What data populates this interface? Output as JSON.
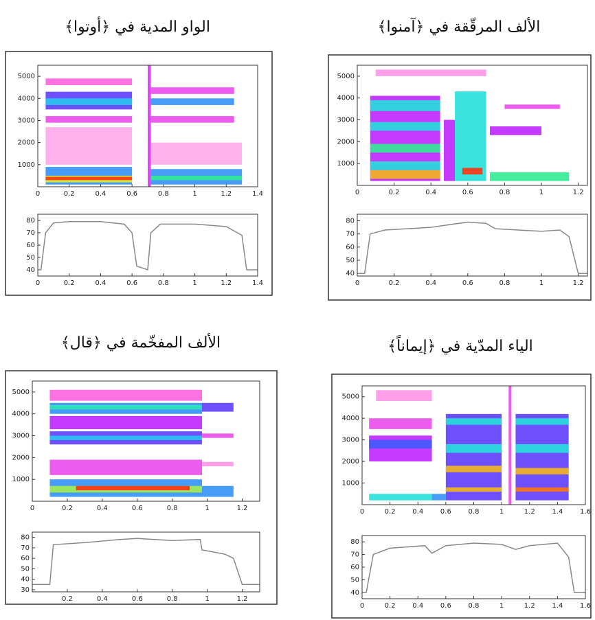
{
  "chart_data": [
    {
      "type": "spectrogram",
      "title": "الواو المدية في ﴿أوتوا﴾",
      "xlim": [
        0,
        1.4
      ],
      "xticks": [
        0,
        0.2,
        0.4,
        0.6,
        0.8,
        1,
        1.2,
        1.4
      ],
      "ylim": [
        0,
        5500
      ],
      "yticks": [
        1000,
        2000,
        3000,
        4000,
        5000
      ],
      "colormap": [
        "#ffffff",
        "#ff66dd",
        "#cc22ff",
        "#4444ff",
        "#22ddee",
        "#33ee88",
        "#eeee22",
        "#ff3311"
      ],
      "bands": [
        [
          0.05,
          0.6,
          100,
          900,
          0.5
        ],
        [
          0.05,
          0.6,
          200,
          500,
          0.85
        ],
        [
          0.05,
          0.6,
          300,
          450,
          1
        ],
        [
          0.05,
          0.6,
          1000,
          2700,
          0.08
        ],
        [
          0.05,
          0.6,
          2900,
          3200,
          0.2
        ],
        [
          0.05,
          0.6,
          3500,
          4300,
          0.4
        ],
        [
          0.05,
          0.6,
          3700,
          4000,
          0.55
        ],
        [
          0.05,
          0.6,
          4600,
          4900,
          0.15
        ],
        [
          0.7,
          0.72,
          0,
          5500,
          0.25
        ],
        [
          0.72,
          1.3,
          100,
          800,
          0.5
        ],
        [
          0.72,
          1.3,
          300,
          500,
          0.7
        ],
        [
          0.72,
          1.25,
          3700,
          4000,
          0.5
        ],
        [
          0.72,
          1.25,
          2900,
          3200,
          0.2
        ],
        [
          0.72,
          1.25,
          4200,
          4500,
          0.2
        ],
        [
          0.72,
          1.3,
          1000,
          2000,
          0.08
        ]
      ]
    },
    {
      "type": "line",
      "xlim": [
        0,
        1.4
      ],
      "xticks": [
        0,
        0.2,
        0.4,
        0.6,
        0.8,
        1,
        1.2,
        1.4
      ],
      "ylim": [
        35,
        85
      ],
      "yticks": [
        40,
        50,
        60,
        70,
        80
      ],
      "color": "#888888",
      "x": [
        0,
        0.02,
        0.05,
        0.1,
        0.2,
        0.4,
        0.55,
        0.6,
        0.63,
        0.7,
        0.72,
        0.78,
        1.0,
        1.2,
        1.3,
        1.33,
        1.4
      ],
      "values": [
        40,
        40,
        70,
        78,
        79,
        79,
        77,
        70,
        43,
        40,
        70,
        77,
        77,
        75,
        68,
        40,
        40
      ]
    },
    {
      "type": "spectrogram",
      "title": "الألف المرقّقة في ﴿آمنوا﴾",
      "xlim": [
        0,
        1.25
      ],
      "xticks": [
        0,
        0.2,
        0.4,
        0.6,
        0.8,
        1,
        1.2
      ],
      "ylim": [
        0,
        5500
      ],
      "yticks": [
        1000,
        2000,
        3000,
        4000,
        5000
      ],
      "colormap": [
        "#ffffff",
        "#ff66dd",
        "#cc22ff",
        "#4444ff",
        "#22ddee",
        "#33ee88",
        "#eeee22",
        "#ff3311"
      ],
      "bands": [
        [
          0.07,
          0.45,
          200,
          4100,
          0.3
        ],
        [
          0.07,
          0.45,
          300,
          700,
          0.9
        ],
        [
          0.07,
          0.45,
          700,
          1100,
          0.6
        ],
        [
          0.07,
          0.45,
          1500,
          1900,
          0.7
        ],
        [
          0.07,
          0.45,
          2500,
          2900,
          0.6
        ],
        [
          0.07,
          0.45,
          3400,
          3900,
          0.6
        ],
        [
          0.47,
          0.53,
          200,
          3000,
          0.3
        ],
        [
          0.53,
          0.7,
          200,
          4300,
          0.6
        ],
        [
          0.57,
          0.68,
          500,
          800,
          1
        ],
        [
          0.72,
          1.15,
          200,
          600,
          0.7
        ],
        [
          0.72,
          1.0,
          2300,
          2700,
          0.3
        ],
        [
          0.8,
          1.1,
          3500,
          3700,
          0.2
        ],
        [
          0.1,
          0.7,
          5000,
          5300,
          0.1
        ]
      ]
    },
    {
      "type": "line",
      "xlim": [
        0,
        1.25
      ],
      "xticks": [
        0,
        0.2,
        0.4,
        0.6,
        0.8,
        1,
        1.2
      ],
      "ylim": [
        38,
        85
      ],
      "yticks": [
        40,
        50,
        60,
        70,
        80
      ],
      "color": "#888888",
      "x": [
        0,
        0.04,
        0.07,
        0.15,
        0.4,
        0.5,
        0.6,
        0.7,
        0.75,
        1.0,
        1.1,
        1.15,
        1.2,
        1.25
      ],
      "values": [
        40,
        40,
        70,
        73,
        75,
        77,
        79,
        78,
        74,
        72,
        73,
        68,
        40,
        40
      ]
    },
    {
      "type": "spectrogram",
      "title": "الألف المفخّمة في ﴿قال﴾",
      "xlim": [
        0,
        1.3
      ],
      "xticks": [
        0,
        0.2,
        0.4,
        0.6,
        0.8,
        1,
        1.2
      ],
      "ylim": [
        0,
        5500
      ],
      "yticks": [
        1000,
        2000,
        3000,
        4000,
        5000
      ],
      "colormap": [
        "#ffffff",
        "#ff66dd",
        "#cc22ff",
        "#4444ff",
        "#22ddee",
        "#33ee88",
        "#eeee22",
        "#ff3311"
      ],
      "bands": [
        [
          0.1,
          0.97,
          200,
          1000,
          0.5
        ],
        [
          0.1,
          0.97,
          400,
          700,
          0.8
        ],
        [
          0.25,
          0.9,
          500,
          700,
          1
        ],
        [
          0.1,
          0.97,
          1200,
          1900,
          0.2
        ],
        [
          0.1,
          0.97,
          2600,
          3200,
          0.4
        ],
        [
          0.1,
          0.97,
          2800,
          3000,
          0.55
        ],
        [
          0.1,
          0.97,
          3300,
          3900,
          0.3
        ],
        [
          0.1,
          0.97,
          4000,
          4500,
          0.5
        ],
        [
          0.1,
          0.97,
          4200,
          4400,
          0.65
        ],
        [
          0.1,
          0.97,
          4600,
          5100,
          0.15
        ],
        [
          0.97,
          1.15,
          200,
          700,
          0.5
        ],
        [
          0.97,
          1.15,
          4100,
          4500,
          0.4
        ],
        [
          0.97,
          1.15,
          1600,
          1800,
          0.1
        ],
        [
          0.97,
          1.15,
          2900,
          3100,
          0.2
        ]
      ]
    },
    {
      "type": "line",
      "xlim": [
        0,
        1.3
      ],
      "xticks": [
        0.2,
        0.4,
        0.6,
        0.8,
        1,
        1.2
      ],
      "ylim": [
        28,
        85
      ],
      "yticks": [
        30,
        40,
        50,
        60,
        70,
        80
      ],
      "color": "#888888",
      "x": [
        0,
        0.1,
        0.12,
        0.3,
        0.5,
        0.6,
        0.8,
        0.96,
        0.97,
        1.1,
        1.15,
        1.2,
        1.3
      ],
      "values": [
        35,
        35,
        73,
        75,
        78,
        79,
        77,
        78,
        68,
        64,
        60,
        35,
        35
      ]
    },
    {
      "type": "spectrogram",
      "title": "الياء المدّية في ﴿إيماناً﴾",
      "xlim": [
        0,
        1.6
      ],
      "xticks": [
        0,
        0.2,
        0.4,
        0.6,
        0.8,
        1,
        1.2,
        1.4,
        1.6
      ],
      "ylim": [
        0,
        5500
      ],
      "yticks": [
        1000,
        2000,
        3000,
        4000,
        5000
      ],
      "colormap": [
        "#ffffff",
        "#ff66dd",
        "#cc22ff",
        "#4444ff",
        "#22ddee",
        "#33ee88",
        "#eeee22",
        "#ff3311"
      ],
      "bands": [
        [
          0.05,
          0.5,
          200,
          500,
          0.6
        ],
        [
          0.05,
          0.5,
          2000,
          3200,
          0.3
        ],
        [
          0.05,
          0.5,
          2600,
          3000,
          0.45
        ],
        [
          0.05,
          0.5,
          3500,
          4000,
          0.2
        ],
        [
          0.1,
          0.5,
          4800,
          5300,
          0.1
        ],
        [
          0.5,
          0.6,
          200,
          500,
          0.5
        ],
        [
          0.6,
          1.0,
          200,
          4200,
          0.4
        ],
        [
          0.6,
          1.0,
          600,
          800,
          0.9
        ],
        [
          0.6,
          1.0,
          1500,
          1800,
          0.9
        ],
        [
          0.6,
          1.0,
          2400,
          2800,
          0.6
        ],
        [
          0.6,
          1.0,
          3700,
          4000,
          0.6
        ],
        [
          1.05,
          1.07,
          0,
          5500,
          0.2
        ],
        [
          1.1,
          1.48,
          200,
          4200,
          0.4
        ],
        [
          1.1,
          1.48,
          600,
          800,
          0.95
        ],
        [
          1.1,
          1.48,
          1400,
          1700,
          0.9
        ],
        [
          1.1,
          1.48,
          2400,
          2800,
          0.6
        ],
        [
          1.1,
          1.48,
          3700,
          4000,
          0.6
        ]
      ]
    },
    {
      "type": "line",
      "xlim": [
        0,
        1.6
      ],
      "xticks": [
        0,
        0.2,
        0.4,
        0.6,
        0.8,
        1,
        1.2,
        1.4,
        1.6
      ],
      "ylim": [
        35,
        85
      ],
      "yticks": [
        40,
        50,
        60,
        70,
        80
      ],
      "color": "#888888",
      "x": [
        0,
        0.03,
        0.08,
        0.2,
        0.45,
        0.5,
        0.6,
        0.8,
        1.0,
        1.1,
        1.2,
        1.4,
        1.48,
        1.52,
        1.6
      ],
      "values": [
        40,
        40,
        70,
        75,
        77,
        71,
        77,
        79,
        78,
        74,
        77,
        79,
        68,
        40,
        40
      ]
    }
  ]
}
